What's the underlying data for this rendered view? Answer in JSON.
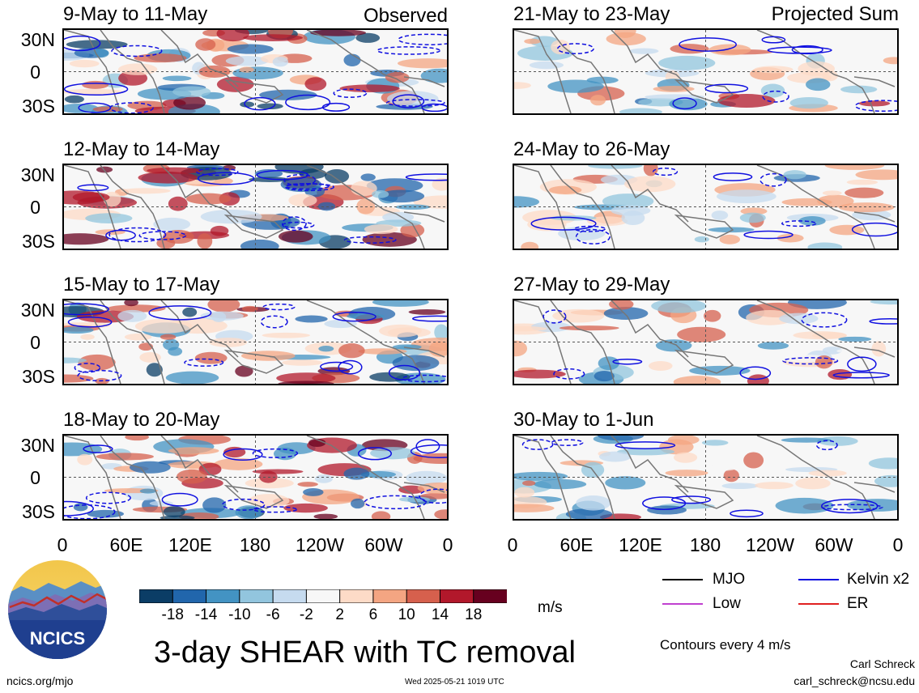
{
  "panels": [
    {
      "title": "9-May to 11-May",
      "tag": "Observed"
    },
    {
      "title": "12-May to 14-May",
      "tag": ""
    },
    {
      "title": "15-May to 17-May",
      "tag": ""
    },
    {
      "title": "18-May to 20-May",
      "tag": ""
    },
    {
      "title": "21-May to 23-May",
      "tag": "Projected Sum"
    },
    {
      "title": "24-May to 26-May",
      "tag": ""
    },
    {
      "title": "27-May to 29-May",
      "tag": ""
    },
    {
      "title": "30-May to 1-Jun",
      "tag": ""
    }
  ],
  "axes": {
    "y_ticks": [
      "30N",
      "0",
      "30S"
    ],
    "x_ticks": [
      "0",
      "60E",
      "120E",
      "180",
      "120W",
      "60W",
      "0"
    ]
  },
  "colorbar": {
    "labels": [
      "-18",
      "-14",
      "-10",
      "-6",
      "-2",
      "2",
      "6",
      "10",
      "14",
      "18"
    ],
    "colors": [
      "#0b3d66",
      "#2166ac",
      "#4393c3",
      "#92c5de",
      "#c6dbef",
      "#f7f7f7",
      "#fddbc7",
      "#f4a582",
      "#d6604d",
      "#b2182b",
      "#67001f"
    ],
    "unit": "m/s"
  },
  "legend": {
    "items": [
      {
        "label": "MJO",
        "color": "#000000"
      },
      {
        "label": "Kelvin x2",
        "color": "#1010e0"
      },
      {
        "label": "Low",
        "color": "#c040d0"
      },
      {
        "label": "ER",
        "color": "#e02020"
      }
    ],
    "contour_note": "Contours every 4 m/s"
  },
  "title": "3-day SHEAR with TC removal",
  "logo_text": "NCICS",
  "footer": {
    "left": "ncics.org/mjo",
    "center": "Wed 2025-05-21 1019 UTC",
    "author": "Carl Schreck",
    "email": "carl_schreck@ncsu.edu"
  },
  "chart_data": {
    "type": "heatmap",
    "variable": "3-day SHEAR with TC removal",
    "unit": "m/s",
    "color_levels": [
      -18,
      -14,
      -10,
      -6,
      -2,
      2,
      6,
      10,
      14,
      18
    ],
    "longitude_ticks": [
      "0",
      "60E",
      "120E",
      "180",
      "120W",
      "60W",
      "0"
    ],
    "latitude_ticks": [
      "30N",
      "0",
      "30S"
    ],
    "contour_interval": "4 m/s",
    "overlays": [
      "MJO",
      "Kelvin x2",
      "Low",
      "ER"
    ],
    "panels": [
      {
        "period": "9-May to 11-May",
        "kind": "Observed"
      },
      {
        "period": "12-May to 14-May",
        "kind": "Observed"
      },
      {
        "period": "15-May to 17-May",
        "kind": "Observed"
      },
      {
        "period": "18-May to 20-May",
        "kind": "Observed"
      },
      {
        "period": "21-May to 23-May",
        "kind": "Projected Sum"
      },
      {
        "period": "24-May to 26-May",
        "kind": "Projected Sum"
      },
      {
        "period": "27-May to 29-May",
        "kind": "Projected Sum"
      },
      {
        "period": "30-May to 1-Jun",
        "kind": "Projected Sum"
      }
    ]
  }
}
